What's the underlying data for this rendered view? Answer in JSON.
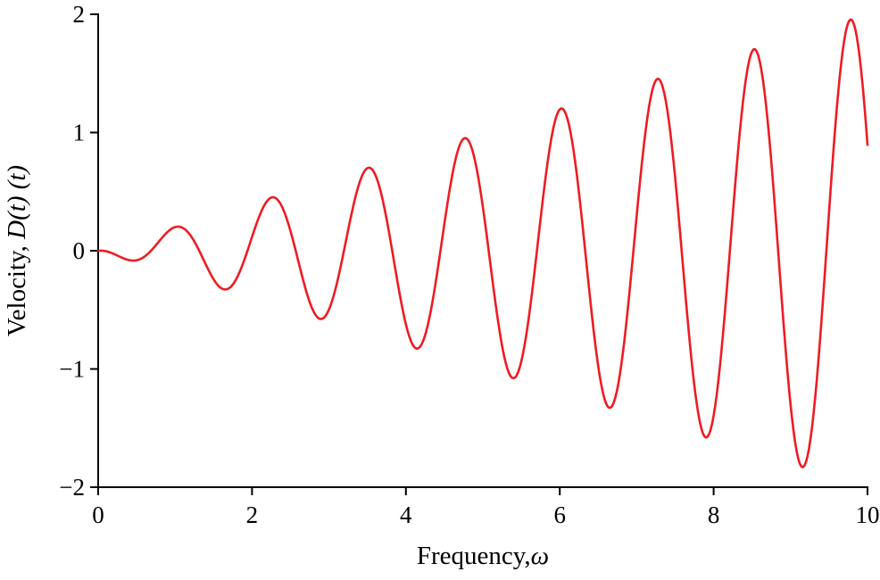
{
  "figure": {
    "background": "#ffffff"
  },
  "chart_data": {
    "type": "line",
    "title": "",
    "xlabel": "Frequency,ω",
    "xlabel_parts": [
      {
        "text": "Frequency,",
        "italic": false
      },
      {
        "text": "ω",
        "italic": true
      }
    ],
    "ylabel": "Velocity, D(t) (t)",
    "ylabel_parts": [
      {
        "text": "Velocity, ",
        "italic": false
      },
      {
        "text": "D(t) (t)",
        "italic": true
      }
    ],
    "xlim": [
      0,
      10
    ],
    "ylim": [
      -2,
      2
    ],
    "x_ticks": [
      0,
      2,
      4,
      6,
      8,
      10
    ],
    "y_ticks": [
      -2,
      -1,
      0,
      1,
      2
    ],
    "grid": false,
    "legend": null,
    "axis_color": "#000000",
    "series": [
      {
        "name": "Velocity D(t)",
        "color": "#ed1c24",
        "line_width": 2.6,
        "model": "y = slope * x * sin(omega * x + phase)",
        "params": {
          "slope": 0.2,
          "omega": 5.01,
          "phase": -3.44
        },
        "x_start": 0,
        "x_end": 10,
        "x_step": 0.02,
        "peaks_x": [
          1.0,
          2.25,
          3.5,
          4.72,
          5.97,
          7.22,
          8.5,
          9.78
        ],
        "peaks_y": [
          0.2,
          0.45,
          0.7,
          0.95,
          1.2,
          1.45,
          1.7,
          1.95
        ],
        "troughs_x": [
          0.42,
          1.6,
          2.87,
          4.1,
          5.35,
          6.6,
          7.87,
          9.15
        ],
        "troughs_y": [
          -0.08,
          -0.3,
          -0.57,
          -0.82,
          -1.07,
          -1.32,
          -1.57,
          -1.83
        ]
      }
    ]
  }
}
